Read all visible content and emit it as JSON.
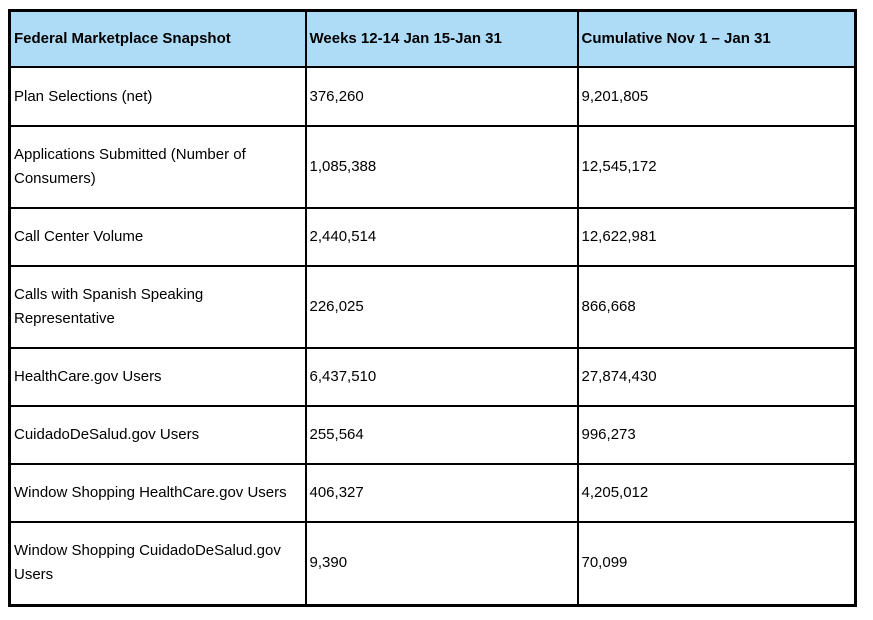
{
  "document": {
    "colors": {
      "header_bg": "#aedcf7",
      "border": "#000000",
      "text": "#000000",
      "page_bg": "#ffffff"
    },
    "table": {
      "columns": [
        "Federal Marketplace Snapshot",
        "Weeks 12-14 Jan 15-Jan 31",
        "Cumulative Nov 1 – Jan 31"
      ],
      "rows": [
        {
          "metric": "Plan Selections (net)",
          "weeks": "376,260",
          "cumulative": "9,201,805"
        },
        {
          "metric": "Applications Submitted (Number of Consumers)",
          "weeks": "1,085,388",
          "cumulative": "12,545,172"
        },
        {
          "metric": "Call Center Volume",
          "weeks": "2,440,514",
          "cumulative": "12,622,981"
        },
        {
          "metric": "Calls with Spanish Speaking Representative",
          "weeks": "226,025",
          "cumulative": "866,668"
        },
        {
          "metric": "HealthCare.gov Users",
          "weeks": "6,437,510",
          "cumulative": "27,874,430"
        },
        {
          "metric": "CuidadoDeSalud.gov Users",
          "weeks": "255,564",
          "cumulative": "996,273"
        },
        {
          "metric": "Window Shopping HealthCare.gov Users",
          "weeks": "406,327",
          "cumulative": "4,205,012"
        },
        {
          "metric": "Window Shopping CuidadoDeSalud.gov Users",
          "weeks": "9,390",
          "cumulative": "70,099"
        }
      ]
    }
  },
  "chart_data": {
    "type": "table",
    "title": "Federal Marketplace Snapshot",
    "columns": [
      "Federal Marketplace Snapshot",
      "Weeks 12-14 Jan 15-Jan 31",
      "Cumulative Nov 1 – Jan 31"
    ],
    "categories": [
      "Plan Selections (net)",
      "Applications Submitted (Number of Consumers)",
      "Call Center Volume",
      "Calls with Spanish Speaking Representative",
      "HealthCare.gov Users",
      "CuidadoDeSalud.gov Users",
      "Window Shopping HealthCare.gov Users",
      "Window Shopping CuidadoDeSalud.gov Users"
    ],
    "series": [
      {
        "name": "Weeks 12-14 Jan 15-Jan 31",
        "values": [
          376260,
          1085388,
          2440514,
          226025,
          6437510,
          255564,
          406327,
          9390
        ]
      },
      {
        "name": "Cumulative Nov 1 – Jan 31",
        "values": [
          9201805,
          12545172,
          12622981,
          866668,
          27874430,
          996273,
          4205012,
          70099
        ]
      }
    ]
  }
}
